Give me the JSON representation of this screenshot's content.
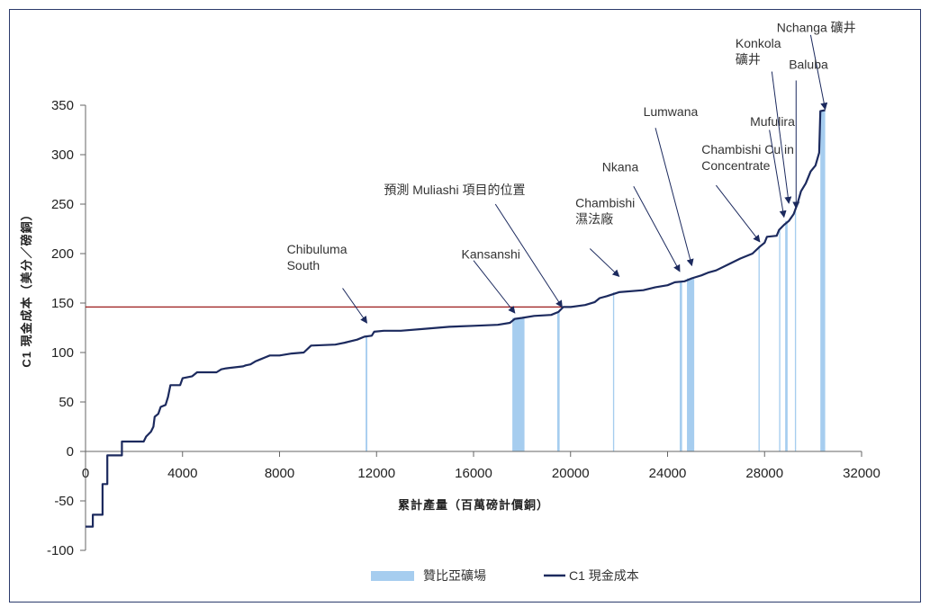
{
  "chart_data": {
    "type": "line",
    "xlabel": "累計產量（百萬磅計價銅）",
    "ylabel": "C1 現金成本（美分／磅銅）",
    "xlim": [
      0,
      32000
    ],
    "ylim": [
      -100,
      350
    ],
    "x_ticks": [
      "0",
      "4000",
      "8000",
      "12000",
      "16000",
      "20000",
      "24000",
      "28000",
      "32000"
    ],
    "y_ticks": [
      "350",
      "300",
      "250",
      "200",
      "150",
      "100",
      "50",
      "0",
      "-50",
      "-100"
    ],
    "x_tick_values": [
      0,
      4000,
      8000,
      12000,
      16000,
      20000,
      24000,
      28000,
      32000
    ],
    "y_tick_values": [
      350,
      300,
      250,
      200,
      150,
      100,
      50,
      0,
      -50,
      -100
    ],
    "reference_line": {
      "y": 146,
      "color": "#9b1b1b"
    },
    "series": [
      {
        "name": "C1 現金成本",
        "color": "#1c2a5e",
        "points": [
          [
            0,
            -76
          ],
          [
            300,
            -76
          ],
          [
            300,
            -64
          ],
          [
            700,
            -64
          ],
          [
            700,
            -33
          ],
          [
            900,
            -33
          ],
          [
            900,
            -4
          ],
          [
            1500,
            -4
          ],
          [
            1500,
            10
          ],
          [
            2400,
            10
          ],
          [
            2500,
            15
          ],
          [
            2700,
            20
          ],
          [
            2800,
            25
          ],
          [
            2850,
            35
          ],
          [
            3000,
            38
          ],
          [
            3100,
            45
          ],
          [
            3300,
            47
          ],
          [
            3400,
            55
          ],
          [
            3500,
            67
          ],
          [
            3900,
            67
          ],
          [
            4000,
            74
          ],
          [
            4400,
            76
          ],
          [
            4600,
            80
          ],
          [
            5400,
            80
          ],
          [
            5600,
            83
          ],
          [
            5800,
            84
          ],
          [
            6500,
            86
          ],
          [
            6600,
            87
          ],
          [
            6800,
            88
          ],
          [
            7000,
            91
          ],
          [
            7200,
            93
          ],
          [
            7400,
            95
          ],
          [
            7600,
            97
          ],
          [
            8000,
            97
          ],
          [
            8500,
            99
          ],
          [
            9000,
            100
          ],
          [
            9300,
            107
          ],
          [
            10300,
            108
          ],
          [
            10700,
            110
          ],
          [
            11200,
            113
          ],
          [
            11500,
            116
          ],
          [
            11800,
            117
          ],
          [
            11900,
            121
          ],
          [
            12300,
            122
          ],
          [
            13000,
            122
          ],
          [
            14000,
            124
          ],
          [
            15000,
            126
          ],
          [
            16000,
            127
          ],
          [
            17000,
            128
          ],
          [
            17500,
            130
          ],
          [
            17700,
            134
          ],
          [
            18000,
            135
          ],
          [
            18500,
            137
          ],
          [
            19200,
            138
          ],
          [
            19500,
            141
          ],
          [
            19700,
            146
          ],
          [
            20000,
            146
          ],
          [
            20600,
            148
          ],
          [
            21000,
            151
          ],
          [
            21200,
            155
          ],
          [
            21500,
            157
          ],
          [
            22000,
            161
          ],
          [
            23000,
            163
          ],
          [
            23500,
            166
          ],
          [
            24000,
            168
          ],
          [
            24300,
            171
          ],
          [
            24700,
            172
          ],
          [
            25000,
            175
          ],
          [
            25400,
            178
          ],
          [
            25700,
            181
          ],
          [
            26000,
            183
          ],
          [
            26500,
            189
          ],
          [
            27000,
            195
          ],
          [
            27500,
            200
          ],
          [
            27800,
            207
          ],
          [
            28000,
            211
          ],
          [
            28100,
            217
          ],
          [
            28500,
            218
          ],
          [
            28600,
            224
          ],
          [
            28800,
            229
          ],
          [
            29000,
            233
          ],
          [
            29200,
            240
          ],
          [
            29350,
            250
          ],
          [
            29500,
            263
          ],
          [
            29700,
            271
          ],
          [
            29900,
            283
          ],
          [
            30100,
            289
          ],
          [
            30250,
            302
          ],
          [
            30300,
            344
          ],
          [
            30500,
            345
          ]
        ]
      }
    ],
    "zambia_mines": {
      "name": "贊比亞礦場",
      "color": "#a6cdef",
      "bars": [
        {
          "x0": 11550,
          "x1": 11620,
          "y": 116
        },
        {
          "x0": 17600,
          "x1": 18100,
          "y": 135
        },
        {
          "x0": 19450,
          "x1": 19550,
          "y": 141
        },
        {
          "x0": 21750,
          "x1": 21800,
          "y": 161
        },
        {
          "x0": 24500,
          "x1": 24600,
          "y": 172
        },
        {
          "x0": 24800,
          "x1": 25100,
          "y": 175
        },
        {
          "x0": 27750,
          "x1": 27800,
          "y": 208
        },
        {
          "x0": 28600,
          "x1": 28650,
          "y": 224
        },
        {
          "x0": 28850,
          "x1": 28950,
          "y": 233
        },
        {
          "x0": 29250,
          "x1": 29300,
          "y": 243
        },
        {
          "x0": 30300,
          "x1": 30500,
          "y": 344
        }
      ]
    },
    "annotations": [
      {
        "lines": [
          "Chibuluma",
          "South"
        ],
        "text_x": 8300,
        "text_y": 200,
        "arrow_from": [
          10600,
          165
        ],
        "arrow_to": [
          11600,
          130
        ]
      },
      {
        "lines": [
          "Kansanshi"
        ],
        "text_x": 15500,
        "text_y": 195,
        "arrow_from": [
          16000,
          193
        ],
        "arrow_to": [
          17700,
          140
        ]
      },
      {
        "lines": [
          "預測 Muliashi 項目的位置"
        ],
        "text_x": 12300,
        "text_y": 260,
        "arrow_from": [
          16900,
          250
        ],
        "arrow_to": [
          19650,
          146
        ]
      },
      {
        "lines": [
          "Chambishi",
          "濕法廠"
        ],
        "text_x": 20200,
        "text_y": 247,
        "arrow_from": [
          20800,
          205
        ],
        "arrow_to": [
          22000,
          177
        ]
      },
      {
        "lines": [
          "Nkana"
        ],
        "text_x": 21300,
        "text_y": 283,
        "arrow_from": [
          22600,
          268
        ],
        "arrow_to": [
          24500,
          182
        ]
      },
      {
        "lines": [
          "Lumwana"
        ],
        "text_x": 23000,
        "text_y": 339,
        "arrow_from": [
          23500,
          327
        ],
        "arrow_to": [
          25000,
          188
        ]
      },
      {
        "lines": [
          "Chambishi Cu in",
          "Concentrate"
        ],
        "text_x": 25400,
        "text_y": 301,
        "arrow_from": [
          26000,
          269
        ],
        "arrow_to": [
          27800,
          212
        ]
      },
      {
        "lines": [
          "Mufulira"
        ],
        "text_x": 27400,
        "text_y": 329,
        "arrow_from": [
          28200,
          325
        ],
        "arrow_to": [
          28800,
          237
        ]
      },
      {
        "lines": [
          "Konkola",
          "礦井"
        ],
        "text_x": 26800,
        "text_y": 408,
        "arrow_from": [
          28300,
          384
        ],
        "arrow_to": [
          29000,
          251
        ]
      },
      {
        "lines": [
          "Nchanga 礦井"
        ],
        "text_x": 28500,
        "text_y": 424,
        "arrow_from": [
          29900,
          421
        ],
        "arrow_to": [
          30500,
          346
        ]
      },
      {
        "lines": [
          "Baluba"
        ],
        "text_x": 29000,
        "text_y": 387,
        "arrow_from": [
          29300,
          375
        ],
        "arrow_to": [
          29300,
          246
        ]
      }
    ],
    "legend": [
      {
        "label": "贊比亞礦場",
        "type": "bar",
        "color": "#a6cdef"
      },
      {
        "label": "C1 現金成本",
        "type": "line",
        "color": "#1c2a5e"
      }
    ]
  }
}
